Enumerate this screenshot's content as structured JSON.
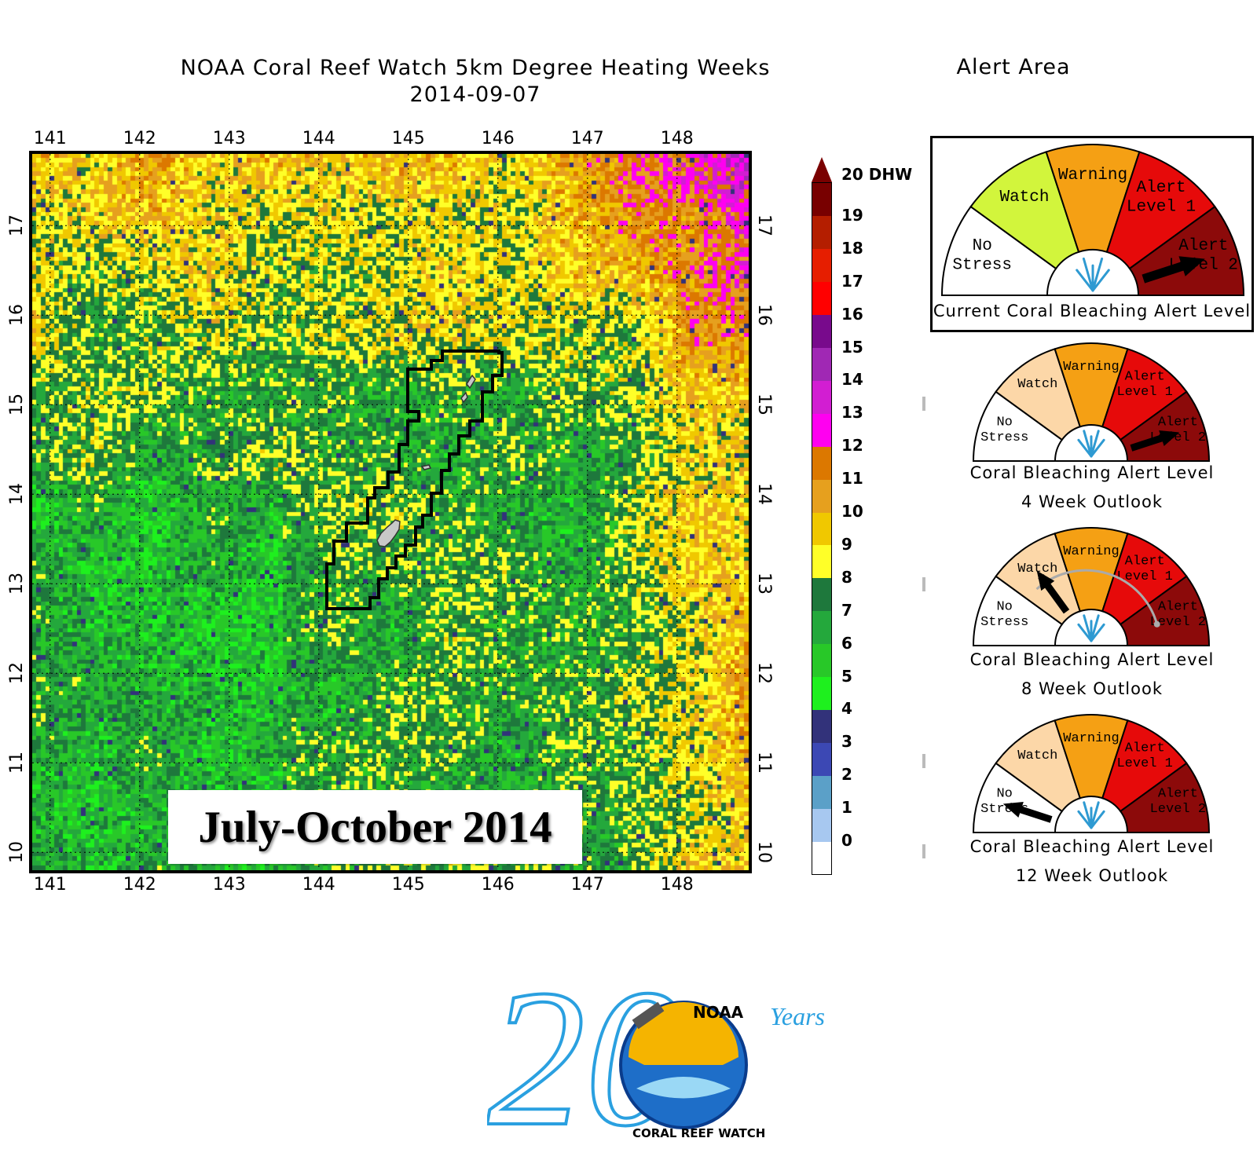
{
  "header": {
    "title_line1": "NOAA Coral Reef Watch 5km Degree Heating Weeks",
    "title_line2": "2014-09-07",
    "alert_area_title": "Alert Area"
  },
  "map": {
    "period_label": "July-October 2014",
    "lon_ticks": [
      "141",
      "142",
      "143",
      "144",
      "145",
      "146",
      "147",
      "148"
    ],
    "lat_ticks": [
      "10",
      "11",
      "12",
      "13",
      "14",
      "15",
      "16",
      "17"
    ],
    "lon_range": [
      140.8,
      148.8
    ],
    "lat_range": [
      9.8,
      17.8
    ],
    "land_color": "#c8c8c8",
    "outline_color": "#000000"
  },
  "colorbar": {
    "unit_label": "20 DHW",
    "levels": [
      "19",
      "18",
      "17",
      "16",
      "15",
      "14",
      "13",
      "12",
      "11",
      "10",
      "9",
      "8",
      "7",
      "6",
      "5",
      "4",
      "3",
      "2",
      "1",
      "0"
    ],
    "colors": [
      "#ffffff",
      "#a7c8f0",
      "#5ba0c8",
      "#3c48b4",
      "#32327a",
      "#1ef01e",
      "#28c828",
      "#24a83c",
      "#1e783c",
      "#ffff28",
      "#f0c800",
      "#e6a01e",
      "#dc7800",
      "#ff00f0",
      "#d21ed2",
      "#a028b4",
      "#780a8c",
      "#ff0000",
      "#e61e00",
      "#b41e00",
      "#780000"
    ]
  },
  "gauges": {
    "labels": {
      "no_stress_1": "No",
      "no_stress_2": "Stress",
      "watch": "Watch",
      "warning": "Warning",
      "alert1_1": "Alert",
      "alert1_2": "Level 1",
      "alert2_1": "Alert",
      "alert2_2": "Level 2"
    },
    "current": {
      "caption": "Current Coral Bleaching Alert Level",
      "level": "Alert Level 2"
    },
    "outlook_4": {
      "caption_1": "Coral Bleaching Alert Level",
      "caption_2": "4 Week Outlook",
      "level": "Alert Level 2"
    },
    "outlook_8": {
      "caption_1": "Coral Bleaching Alert Level",
      "caption_2": "8 Week Outlook",
      "level": "Watch"
    },
    "outlook_12": {
      "caption_1": "Coral Bleaching Alert Level",
      "caption_2": "12 Week Outlook",
      "level": "No Stress"
    },
    "colors": {
      "no_stress": "#ffffff",
      "watch_current": "#d2f53c",
      "watch_outlook": "#fcd7a8",
      "warning": "#f5a014",
      "alert1": "#e60a0a",
      "alert2": "#8c0a0a"
    }
  },
  "logo": {
    "numeral": "20",
    "years": "Years",
    "org_top": "NOAA",
    "org_bottom": "CORAL REEF WATCH",
    "accent_color": "#2aa0e0"
  }
}
